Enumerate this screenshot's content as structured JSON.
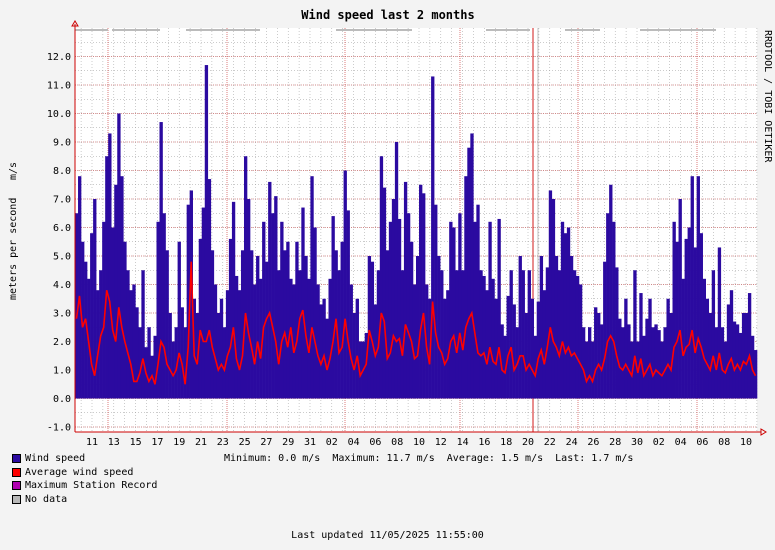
{
  "chart_data": {
    "type": "bar",
    "title": "Wind speed last 2 months",
    "ylabel": "meters per second",
    "yunit": "m/s",
    "watermark": "RRDTOOL / TOBI OETIKER",
    "ylim": [
      -1.0,
      12.0
    ],
    "yticks": [
      "12.0",
      "11.0",
      "10.0",
      "9.0",
      "8.0",
      "7.0",
      "6.0",
      "5.0",
      "4.0",
      "3.0",
      "2.0",
      "1.0",
      "0.0",
      "-1.0"
    ],
    "xtick_labels": [
      "11",
      "13",
      "15",
      "17",
      "19",
      "21",
      "23",
      "25",
      "27",
      "29",
      "31",
      "02",
      "04",
      "06",
      "08",
      "10",
      "12",
      "14",
      "16",
      "18",
      "20",
      "22",
      "24",
      "26",
      "28",
      "30",
      "02",
      "04",
      "06",
      "08",
      "10"
    ],
    "grid": true,
    "series": [
      {
        "name": "Wind speed",
        "color": "#2b0aa0",
        "values": [
          6.5,
          7.8,
          5.5,
          4.8,
          4.2,
          5.8,
          7.0,
          3.8,
          4.5,
          6.2,
          8.5,
          9.3,
          6.0,
          7.5,
          10.0,
          7.8,
          5.5,
          4.5,
          3.8,
          4.0,
          3.2,
          2.5,
          4.5,
          1.8,
          2.5,
          1.5,
          2.2,
          6.2,
          9.7,
          6.5,
          5.2,
          3.0,
          2.0,
          2.5,
          5.5,
          3.2,
          2.5,
          6.8,
          7.3,
          3.5,
          3.0,
          5.6,
          6.7,
          11.7,
          7.7,
          5.2,
          4.0,
          3.0,
          3.5,
          2.5,
          3.8,
          5.6,
          6.9,
          4.3,
          3.8,
          5.2,
          8.5,
          7.0,
          5.2,
          4.0,
          5.0,
          4.2,
          6.2,
          4.8,
          7.6,
          6.5,
          7.1,
          4.5,
          6.2,
          5.2,
          5.5,
          4.2,
          4.0,
          5.5,
          4.5,
          6.7,
          5.0,
          4.2,
          7.8,
          6.0,
          4.0,
          3.3,
          3.5,
          2.8,
          4.2,
          6.4,
          5.2,
          4.5,
          5.5,
          8.0,
          6.6,
          4.0,
          3.0,
          3.5,
          2.0,
          2.0,
          2.3,
          5.0,
          4.8,
          3.3,
          4.5,
          8.5,
          7.4,
          5.2,
          6.2,
          7.0,
          9.0,
          6.3,
          4.5,
          7.6,
          6.5,
          5.5,
          4.0,
          5.0,
          7.5,
          7.2,
          4.0,
          3.5,
          11.3,
          6.8,
          5.0,
          4.5,
          3.5,
          3.8,
          6.2,
          6.0,
          4.5,
          6.5,
          4.5,
          7.8,
          8.8,
          9.3,
          6.2,
          6.8,
          4.5,
          4.3,
          3.8,
          6.2,
          4.2,
          3.5,
          6.3,
          2.6,
          2.2,
          3.6,
          4.5,
          3.3,
          2.5,
          5.0,
          4.5,
          3.0,
          4.5,
          3.5,
          2.2,
          3.4,
          5.0,
          3.8,
          4.6,
          7.3,
          7.0,
          5.0,
          4.5,
          6.2,
          5.8,
          6.0,
          5.0,
          4.5,
          4.3,
          4.0,
          2.5,
          2.0,
          2.5,
          2.0,
          3.2,
          3.0,
          2.6,
          4.8,
          6.5,
          7.5,
          6.2,
          4.6,
          2.8,
          2.5,
          3.5,
          2.6,
          2.0,
          4.5,
          2.0,
          3.7,
          2.2,
          2.8,
          3.5,
          2.5,
          2.6,
          2.4,
          2.0,
          2.5,
          3.5,
          3.0,
          6.2,
          5.5,
          7.0,
          4.2,
          5.6,
          6.0,
          7.8,
          5.3,
          7.8,
          5.8,
          4.2,
          3.5,
          3.0,
          4.5,
          2.5,
          5.3,
          2.5,
          2.0,
          3.3,
          3.8,
          2.7,
          2.6,
          2.3,
          3.0,
          3.0,
          3.7,
          2.2,
          1.7
        ]
      },
      {
        "name": "Average wind speed",
        "color": "#ff0000",
        "values": [
          2.8,
          3.6,
          2.5,
          2.8,
          2.0,
          1.2,
          0.8,
          1.5,
          2.2,
          2.5,
          3.8,
          3.4,
          2.4,
          2.0,
          3.2,
          2.5,
          2.0,
          1.6,
          1.2,
          0.6,
          0.6,
          0.9,
          1.4,
          0.9,
          0.6,
          0.8,
          0.5,
          1.2,
          2.0,
          1.8,
          1.2,
          1.0,
          0.8,
          1.0,
          1.6,
          1.2,
          0.5,
          1.8,
          4.8,
          1.5,
          1.2,
          2.4,
          2.0,
          2.0,
          2.4,
          1.8,
          1.4,
          1.0,
          1.2,
          1.0,
          1.5,
          1.8,
          2.5,
          1.4,
          1.0,
          1.5,
          3.0,
          2.3,
          1.8,
          1.2,
          2.0,
          1.4,
          2.5,
          2.8,
          3.0,
          2.5,
          2.0,
          1.2,
          2.0,
          2.3,
          1.8,
          2.5,
          1.6,
          2.0,
          2.8,
          3.1,
          2.2,
          1.6,
          2.5,
          2.0,
          1.5,
          1.2,
          1.5,
          1.0,
          1.4,
          2.0,
          2.8,
          1.6,
          1.8,
          2.8,
          2.0,
          1.4,
          1.0,
          1.5,
          0.8,
          1.0,
          1.2,
          2.4,
          2.0,
          1.5,
          1.8,
          3.0,
          2.7,
          1.4,
          1.6,
          2.2,
          2.0,
          2.1,
          1.5,
          2.6,
          2.3,
          2.0,
          1.4,
          1.5,
          2.4,
          3.0,
          1.8,
          1.2,
          3.4,
          2.3,
          1.8,
          1.6,
          1.2,
          1.4,
          2.0,
          2.2,
          1.6,
          2.3,
          1.7,
          2.5,
          2.8,
          3.0,
          2.3,
          1.6,
          1.5,
          1.6,
          1.2,
          1.8,
          1.3,
          1.2,
          1.8,
          1.0,
          0.9,
          1.5,
          1.8,
          1.0,
          1.2,
          1.5,
          1.5,
          1.0,
          1.2,
          1.0,
          0.8,
          1.4,
          1.7,
          1.2,
          1.8,
          2.5,
          2.0,
          1.8,
          1.5,
          2.0,
          1.6,
          1.8,
          1.5,
          1.6,
          1.4,
          1.2,
          1.0,
          0.6,
          0.8,
          0.6,
          1.0,
          1.2,
          1.0,
          1.4,
          2.0,
          2.2,
          2.0,
          1.5,
          1.1,
          1.0,
          1.2,
          1.0,
          0.8,
          1.5,
          0.9,
          1.4,
          0.8,
          1.0,
          1.2,
          0.8,
          1.0,
          0.9,
          0.8,
          1.0,
          1.2,
          1.0,
          1.8,
          2.0,
          2.4,
          1.5,
          1.8,
          1.9,
          2.4,
          1.6,
          2.1,
          1.8,
          1.4,
          1.2,
          1.0,
          1.5,
          1.0,
          1.6,
          1.0,
          0.9,
          1.2,
          1.4,
          1.0,
          1.2,
          1.0,
          1.3,
          1.2,
          1.5,
          1.0,
          0.8
        ]
      }
    ],
    "legend": [
      {
        "label": "Wind speed",
        "color": "#2b0aa0"
      },
      {
        "label": "Average wind speed",
        "color": "#ff0000"
      },
      {
        "label": "Maximum Station Record",
        "color": "#b000b0"
      },
      {
        "label": "No data",
        "color": "#b8b8b8"
      }
    ],
    "stats": {
      "minimum": "Minimum: 0.0 m/s",
      "maximum": "Maximum: 11.7 m/s",
      "average": "Average: 1.5 m/s",
      "last": "Last: 1.7 m/s"
    },
    "last_updated": "Last updated 11/05/2025 11:55:00"
  }
}
